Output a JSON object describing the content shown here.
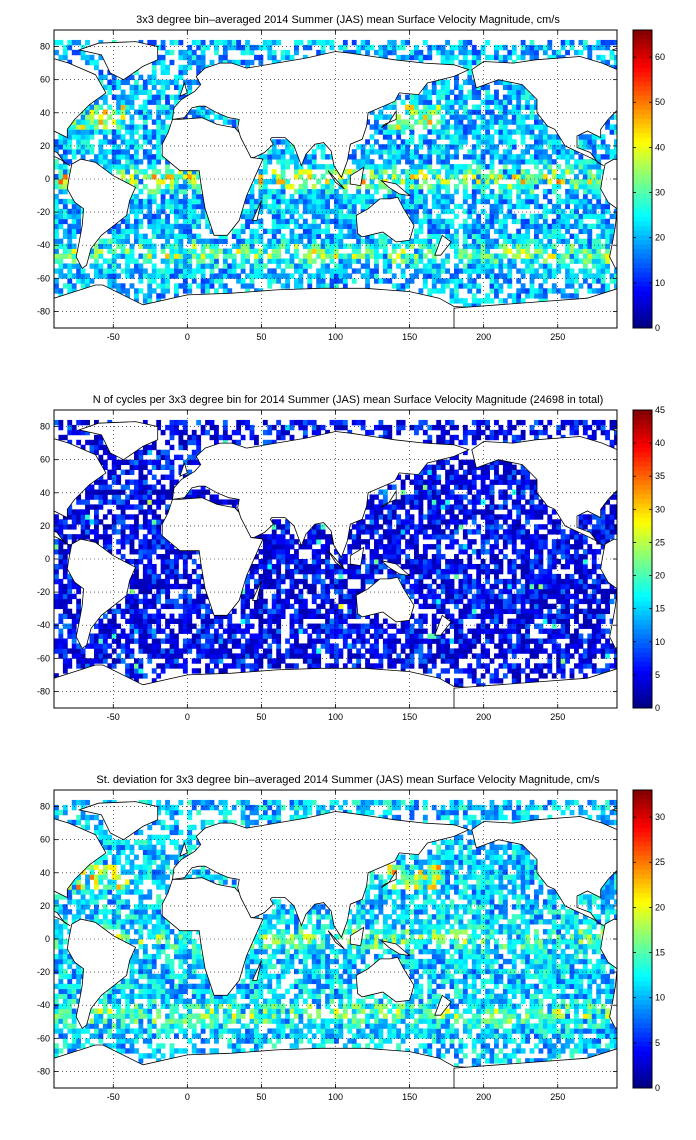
{
  "chart_data": [
    {
      "type": "heatmap",
      "title": "3x3 degree bin–averaged 2014 Summer (JAS) mean Surface Velocity Magnitude, cm/s",
      "xlim": [
        -90,
        290
      ],
      "ylim": [
        -90,
        90
      ],
      "xticks": [
        -50,
        0,
        50,
        100,
        150,
        200,
        250
      ],
      "yticks": [
        80,
        60,
        40,
        20,
        0,
        -20,
        -40,
        -60,
        -80
      ],
      "colorbar": {
        "min": 0,
        "max": 66,
        "ticks": [
          0,
          10,
          20,
          30,
          40,
          50,
          60
        ]
      },
      "bin_size_deg": 3,
      "grid": true
    },
    {
      "type": "heatmap",
      "title": "N of cycles per 3x3 degree bin for 2014 Summer (JAS) mean Surface Velocity Magnitude (24698 in total)",
      "xlim": [
        -90,
        290
      ],
      "ylim": [
        -90,
        90
      ],
      "xticks": [
        -50,
        0,
        50,
        100,
        150,
        200,
        250
      ],
      "yticks": [
        80,
        60,
        40,
        20,
        0,
        -20,
        -40,
        -60,
        -80
      ],
      "colorbar": {
        "min": 0,
        "max": 45,
        "ticks": [
          0,
          5,
          10,
          15,
          20,
          25,
          30,
          35,
          40,
          45
        ]
      },
      "total_cycles": 24698,
      "bin_size_deg": 3,
      "grid": true
    },
    {
      "type": "heatmap",
      "title": "St. deviation for 3x3 degree bin–averaged 2014 Summer (JAS) mean Surface Velocity Magnitude, cm/s",
      "xlim": [
        -90,
        290
      ],
      "ylim": [
        -90,
        90
      ],
      "xticks": [
        -50,
        0,
        50,
        100,
        150,
        200,
        250
      ],
      "yticks": [
        80,
        60,
        40,
        20,
        0,
        -20,
        -40,
        -60,
        -80
      ],
      "colorbar": {
        "min": 0,
        "max": 33,
        "ticks": [
          0,
          5,
          10,
          15,
          20,
          25,
          30
        ]
      },
      "bin_size_deg": 3,
      "grid": true
    }
  ],
  "colormap": "jet"
}
